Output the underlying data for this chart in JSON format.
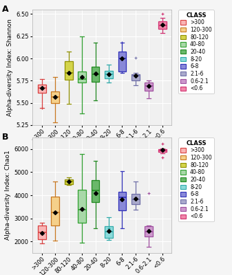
{
  "categories": [
    ">300",
    "120-300",
    "80-120",
    "40-80",
    "20-40",
    "8-20",
    "6-8",
    "2.1-6",
    "0.6-2.1",
    "<0.6"
  ],
  "fill_colors": [
    "#f9b5b5",
    "#f5d08a",
    "#d4d44a",
    "#a8d8a8",
    "#6ab86a",
    "#8adada",
    "#8888d8",
    "#aaaacc",
    "#cc99cc",
    "#f088aa"
  ],
  "edge_colors": [
    "#d94040",
    "#c87820",
    "#909000",
    "#30a030",
    "#208820",
    "#30aaaa",
    "#3030b8",
    "#7070a8",
    "#a050a0",
    "#d03070"
  ],
  "legend_labels": [
    ">300",
    "120-300",
    "80-120",
    "40-80",
    "20-40",
    "8-20",
    "6-8",
    "2.1-6",
    "0.6-2.1",
    "<0.6"
  ],
  "panel_A": {
    "ylabel": "Alpha-diversity Index: Shannon",
    "ylim": [
      5.25,
      6.55
    ],
    "yticks": [
      5.25,
      5.5,
      5.75,
      6.0,
      6.25,
      6.5
    ],
    "boxes": [
      {
        "q1": 5.615,
        "median": 5.665,
        "q3": 5.71,
        "whislo": 5.44,
        "whishi": 5.77,
        "mean": 5.665,
        "fliers_lo": [
          5.44
        ],
        "fliers_hi": []
      },
      {
        "q1": 5.5,
        "median": 5.57,
        "q3": 5.63,
        "whislo": 5.28,
        "whishi": 5.79,
        "mean": 5.565,
        "fliers_lo": [],
        "fliers_hi": []
      },
      {
        "q1": 5.76,
        "median": 5.835,
        "q3": 5.97,
        "whislo": 5.49,
        "whishi": 6.08,
        "mean": 5.84,
        "fliers_lo": [],
        "fliers_hi": []
      },
      {
        "q1": 5.73,
        "median": 5.77,
        "q3": 5.855,
        "whislo": 5.38,
        "whishi": 6.25,
        "mean": 5.79,
        "fliers_lo": [],
        "fliers_hi": []
      },
      {
        "q1": 5.74,
        "median": 5.82,
        "q3": 5.91,
        "whislo": 5.53,
        "whishi": 6.18,
        "mean": 5.83,
        "fliers_lo": [],
        "fliers_hi": []
      },
      {
        "q1": 5.78,
        "median": 5.82,
        "q3": 5.86,
        "whislo": 5.73,
        "whishi": 5.93,
        "mean": 5.82,
        "fliers_lo": [],
        "fliers_hi": []
      },
      {
        "q1": 5.855,
        "median": 6.0,
        "q3": 6.08,
        "whislo": 5.835,
        "whishi": 6.18,
        "mean": 6.0,
        "fliers_lo": [],
        "fliers_hi": [
          6.18
        ]
      },
      {
        "q1": 5.755,
        "median": 5.805,
        "q3": 5.825,
        "whislo": 5.7,
        "whishi": 5.84,
        "mean": 5.805,
        "fliers_lo": [],
        "fliers_hi": [
          6.01
        ]
      },
      {
        "q1": 5.64,
        "median": 5.69,
        "q3": 5.73,
        "whislo": 5.55,
        "whishi": 5.75,
        "mean": 5.69,
        "fliers_lo": [],
        "fliers_hi": []
      },
      {
        "q1": 6.33,
        "median": 6.375,
        "q3": 6.42,
        "whislo": 6.29,
        "whishi": 6.46,
        "mean": 6.38,
        "fliers_lo": [],
        "fliers_hi": [
          6.505
        ]
      }
    ]
  },
  "panel_B": {
    "ylabel": "Alpha-diversity Index: Chao1",
    "ylim": [
      1500,
      6500
    ],
    "yticks": [
      2000,
      3000,
      4000,
      5000,
      6000
    ],
    "boxes": [
      {
        "q1": 2100,
        "median": 2380,
        "q3": 2680,
        "whislo": 1920,
        "whishi": 2820,
        "mean": 2360,
        "fliers_lo": [],
        "fliers_hi": []
      },
      {
        "q1": 2700,
        "median": 3250,
        "q3": 3950,
        "whislo": 2050,
        "whishi": 4600,
        "mean": 3250,
        "fliers_lo": [],
        "fliers_hi": []
      },
      {
        "q1": 4490,
        "median": 4600,
        "q3": 4680,
        "whislo": 4440,
        "whishi": 4760,
        "mean": 4590,
        "fliers_lo": [],
        "fliers_hi": []
      },
      {
        "q1": 2820,
        "median": 3380,
        "q3": 4250,
        "whislo": 1950,
        "whishi": 5780,
        "mean": 3400,
        "fliers_lo": [],
        "fliers_hi": []
      },
      {
        "q1": 3700,
        "median": 4200,
        "q3": 4650,
        "whislo": 2560,
        "whishi": 5500,
        "mean": 4100,
        "fliers_lo": [],
        "fliers_hi": []
      },
      {
        "q1": 2150,
        "median": 2420,
        "q3": 2660,
        "whislo": 2060,
        "whishi": 3050,
        "mean": 2460,
        "fliers_lo": [],
        "fliers_hi": [
          2560
        ]
      },
      {
        "q1": 3350,
        "median": 3900,
        "q3": 4150,
        "whislo": 2560,
        "whishi": 5050,
        "mean": 3820,
        "fliers_lo": [],
        "fliers_hi": []
      },
      {
        "q1": 3600,
        "median": 3820,
        "q3": 4050,
        "whislo": 3380,
        "whishi": 4600,
        "mean": 3850,
        "fliers_lo": [],
        "fliers_hi": []
      },
      {
        "q1": 2200,
        "median": 2420,
        "q3": 2650,
        "whislo": 1780,
        "whishi": 2700,
        "mean": 2450,
        "fliers_lo": [],
        "fliers_hi": [
          4100
        ]
      },
      {
        "q1": 5880,
        "median": 5940,
        "q3": 5980,
        "whislo": 5830,
        "whishi": 6020,
        "mean": 5950,
        "fliers_lo": [
          5640
        ],
        "fliers_hi": [
          6220
        ]
      }
    ]
  },
  "fig_bg": "#f5f5f5",
  "plot_bg": "#f0f0f0",
  "grid_color": "#ffffff",
  "label_fontsize": 6.5,
  "tick_fontsize": 6.0,
  "legend_fontsize": 5.5,
  "legend_title_fontsize": 6.0
}
